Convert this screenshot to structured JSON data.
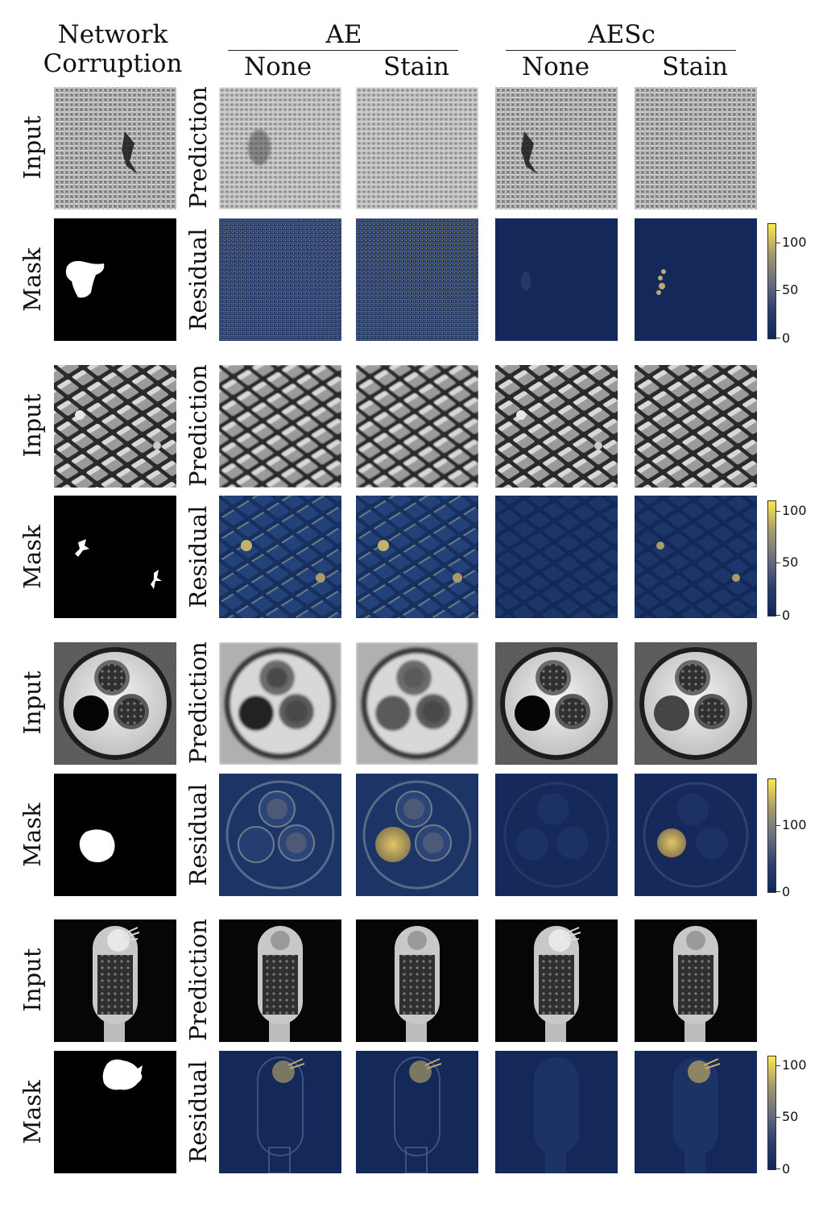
{
  "figure": {
    "header": {
      "corner_line1": "Network",
      "corner_line2": "Corruption",
      "group_ae": "AE",
      "group_aesc": "AESc",
      "ae_none": "None",
      "ae_stain": "Stain",
      "aesc_none": "None",
      "aesc_stain": "Stain"
    },
    "row_labels": {
      "input": "Input",
      "mask": "Mask",
      "prediction": "Prediction",
      "residual": "Residual"
    },
    "textures": [
      "carpet",
      "grid",
      "pill capsule",
      "toothbrush"
    ],
    "colorbars": [
      {
        "max": 120,
        "ticks": [
          "100",
          "50",
          "0"
        ],
        "tick_values": [
          100,
          50,
          0
        ]
      },
      {
        "max": 110,
        "ticks": [
          "100",
          "50",
          "0"
        ],
        "tick_values": [
          100,
          50,
          0
        ]
      },
      {
        "max": 170,
        "ticks": [
          "100",
          "0"
        ],
        "tick_values": [
          100,
          0
        ]
      },
      {
        "max": 110,
        "ticks": [
          "100",
          "50",
          "0"
        ],
        "tick_values": [
          100,
          50,
          0
        ]
      }
    ],
    "colormap": {
      "low": "#0f2658",
      "high": "#fde84b"
    }
  }
}
